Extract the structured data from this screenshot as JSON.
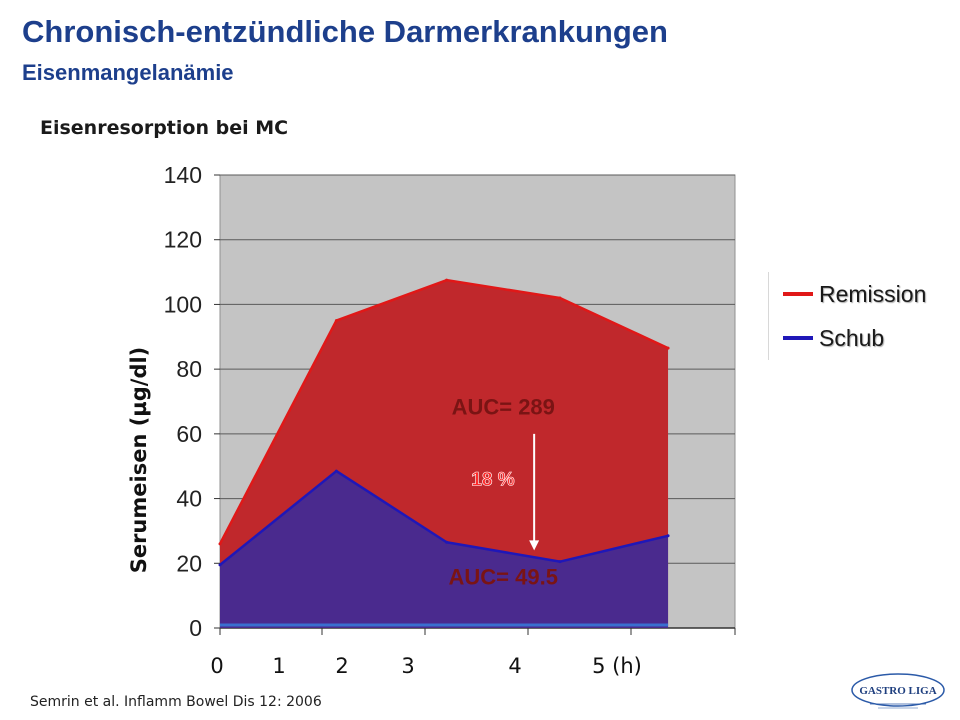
{
  "slide": {
    "title": "Chronisch-entzündliche Darmerkrankungen",
    "subtitle": "Eisenmangelanämie",
    "chart_heading": "Eisenresorption bei MC",
    "citation": "Semrin et al. Inflamm Bowel Dis 12: 2006",
    "logo_text": "GASTRO LIGA"
  },
  "chart_data": {
    "type": "area",
    "ylabel": "Serumeisen (µg/dl)",
    "ylim": [
      0,
      140
    ],
    "y_ticks": [
      0,
      20,
      40,
      60,
      80,
      100,
      120,
      140
    ],
    "x_tick_labels": [
      "0",
      "1",
      "2",
      "3",
      "4",
      "5 (h)"
    ],
    "x_tick_values": [
      0,
      1,
      2,
      3,
      4,
      5
    ],
    "grid": "horizontal",
    "legend_placement": "right",
    "series": [
      {
        "name": "Remission",
        "color": "#e01818",
        "fill": "#c0282c",
        "points": [
          [
            0,
            26
          ],
          [
            1.13,
            95
          ],
          [
            2.2,
            107.5
          ],
          [
            3.3,
            102
          ],
          [
            4.35,
            86.5
          ]
        ]
      },
      {
        "name": "Schub",
        "color": "#1f17b8",
        "fill": "#4a2a8e",
        "points": [
          [
            0,
            19.5
          ],
          [
            1.13,
            48.5
          ],
          [
            2.2,
            26.5
          ],
          [
            3.3,
            20.5
          ],
          [
            4.35,
            28.5
          ]
        ]
      }
    ],
    "annotations": [
      {
        "text": "AUC= 289",
        "x": 2.75,
        "y": 66
      },
      {
        "text": "AUC= 49.5",
        "x": 2.75,
        "y": 13.5
      },
      {
        "text": "18 %",
        "x": 2.65,
        "y": 44,
        "color": "#ff2a2a"
      }
    ],
    "arrow": {
      "x": 3.05,
      "from_y": 60,
      "to_y": 24
    }
  }
}
